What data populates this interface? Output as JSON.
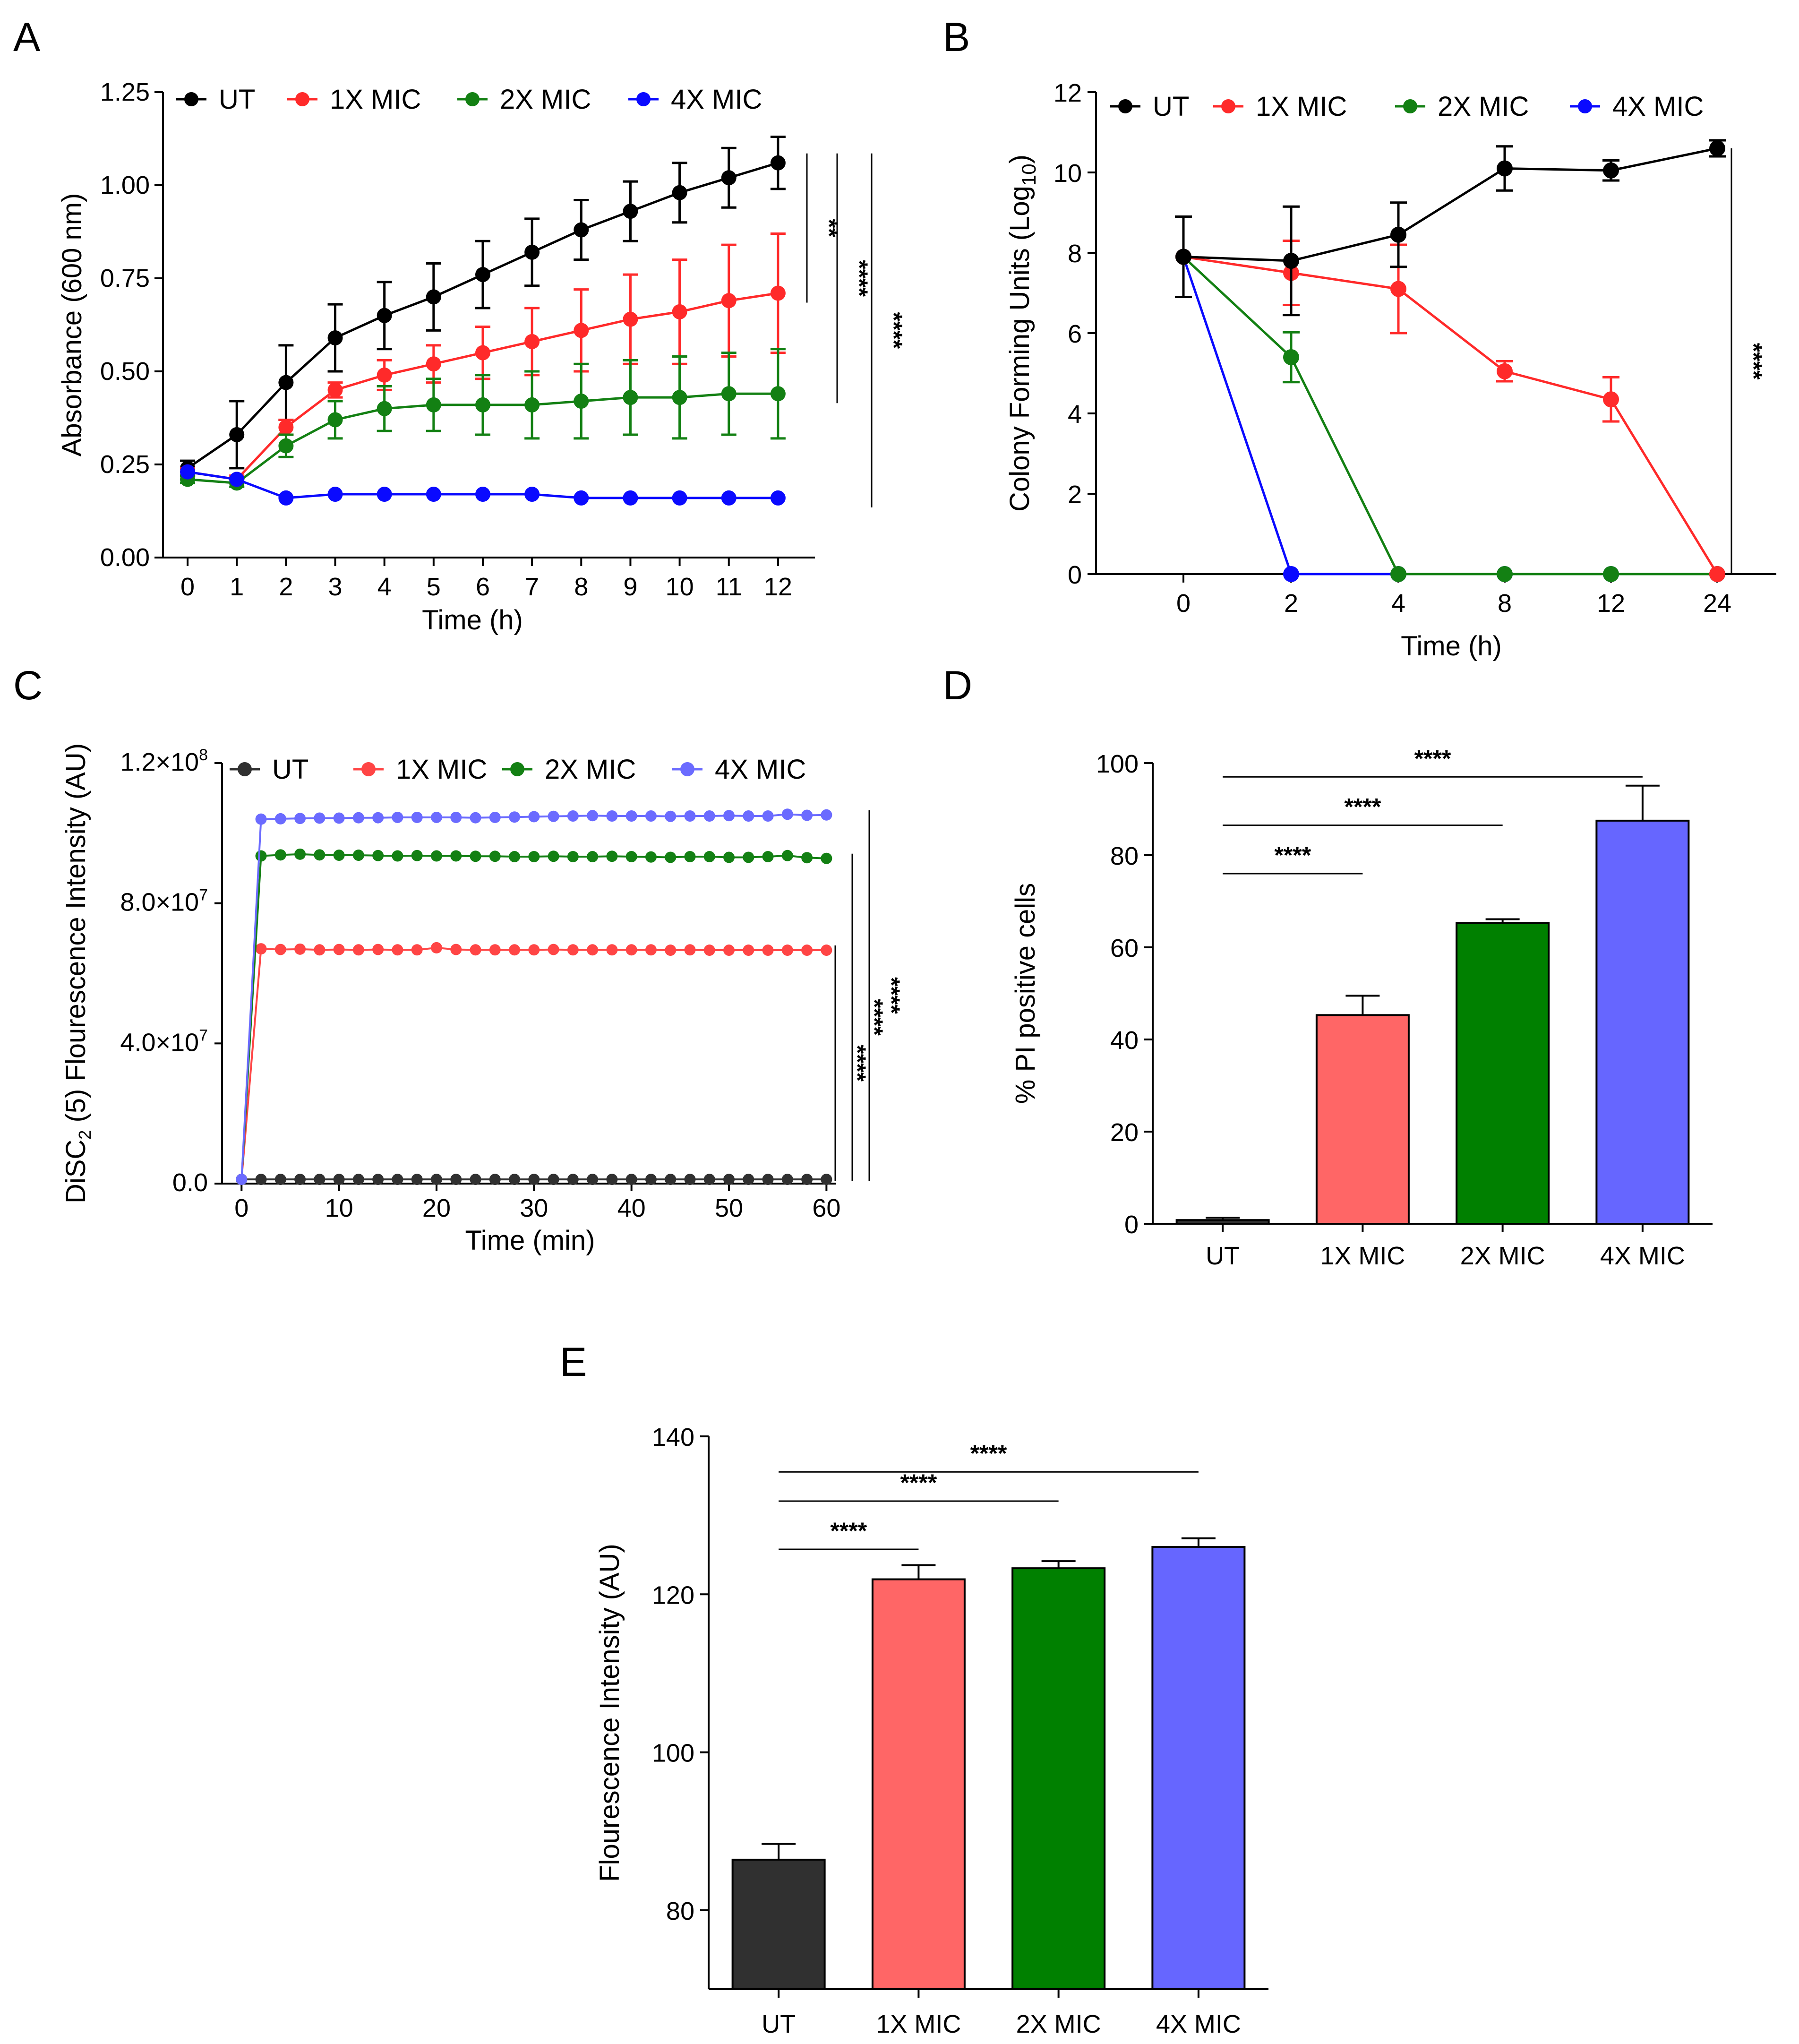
{
  "legend_series": [
    "UT",
    "1X MIC",
    "2X MIC",
    "4X MIC"
  ],
  "colors": {
    "A": [
      "#000000",
      "#ff2a2a",
      "#138013",
      "#0a0aff"
    ],
    "C": [
      "#303030",
      "#ff4545",
      "#138013",
      "#6b6bff"
    ],
    "bars": [
      "#303030",
      "#ff6666",
      "#008000",
      "#6666ff"
    ]
  },
  "chart_data": [
    {
      "id": "A",
      "panel_label": "A",
      "type": "line",
      "title": "",
      "xlabel": "Time (h)",
      "ylabel": "Absorbance (600 nm)",
      "x": [
        0,
        1,
        2,
        3,
        4,
        5,
        6,
        7,
        8,
        9,
        10,
        11,
        12
      ],
      "x_ticks": [
        "0",
        "1",
        "2",
        "3",
        "4",
        "5",
        "6",
        "7",
        "8",
        "9",
        "10",
        "11",
        "12"
      ],
      "ylim": [
        0,
        1.25
      ],
      "y_ticks": [
        "0.00",
        "0.25",
        "0.50",
        "0.75",
        "1.00",
        "1.25"
      ],
      "series": [
        {
          "name": "UT",
          "values": [
            0.24,
            0.33,
            0.47,
            0.59,
            0.65,
            0.7,
            0.76,
            0.82,
            0.88,
            0.93,
            0.98,
            1.02,
            1.06
          ],
          "errors": [
            0.02,
            0.09,
            0.1,
            0.09,
            0.09,
            0.09,
            0.09,
            0.09,
            0.08,
            0.08,
            0.08,
            0.08,
            0.07
          ]
        },
        {
          "name": "1X MIC",
          "values": [
            0.23,
            0.21,
            0.35,
            0.45,
            0.49,
            0.52,
            0.55,
            0.58,
            0.61,
            0.64,
            0.66,
            0.69,
            0.71
          ],
          "errors": [
            0.01,
            0.01,
            0.02,
            0.02,
            0.04,
            0.05,
            0.07,
            0.09,
            0.11,
            0.12,
            0.14,
            0.15,
            0.16
          ]
        },
        {
          "name": "2X MIC",
          "values": [
            0.21,
            0.2,
            0.3,
            0.37,
            0.4,
            0.41,
            0.41,
            0.41,
            0.42,
            0.43,
            0.43,
            0.44,
            0.44
          ],
          "errors": [
            0.01,
            0.01,
            0.03,
            0.05,
            0.06,
            0.07,
            0.08,
            0.09,
            0.1,
            0.1,
            0.11,
            0.11,
            0.12
          ]
        },
        {
          "name": "4X MIC",
          "values": [
            0.23,
            0.21,
            0.16,
            0.17,
            0.17,
            0.17,
            0.17,
            0.17,
            0.16,
            0.16,
            0.16,
            0.16,
            0.16
          ],
          "errors": [
            0,
            0,
            0,
            0,
            0,
            0,
            0,
            0,
            0,
            0,
            0,
            0,
            0
          ]
        }
      ],
      "annotations": [
        {
          "label": "**",
          "y_range": [
            0.71,
            1.06
          ]
        },
        {
          "label": "****",
          "y_range": [
            0.44,
            1.06
          ]
        },
        {
          "label": "****",
          "y_range": [
            0.16,
            1.06
          ]
        }
      ],
      "legend": "top"
    },
    {
      "id": "B",
      "panel_label": "B",
      "type": "line",
      "title": "",
      "xlabel": "Time (h)",
      "ylabel": "Colony Forming Units (Log",
      "ylabel_sub": "10",
      "ylabel_end": ")",
      "x": [
        "0",
        "2",
        "4",
        "8",
        "12",
        "24"
      ],
      "ylim": [
        0,
        12
      ],
      "y_ticks": [
        "0",
        "2",
        "4",
        "6",
        "8",
        "10",
        "12"
      ],
      "series": [
        {
          "name": "UT",
          "values": [
            7.9,
            7.8,
            8.45,
            10.1,
            10.05,
            10.6
          ],
          "errors": [
            1.0,
            1.35,
            0.8,
            0.55,
            0.25,
            0.2
          ]
        },
        {
          "name": "1X MIC",
          "values": [
            7.9,
            7.5,
            7.1,
            5.05,
            4.35,
            0
          ],
          "errors": [
            1.0,
            0.8,
            1.1,
            0.25,
            0.55,
            0
          ]
        },
        {
          "name": "2X MIC",
          "values": [
            7.9,
            5.4,
            0,
            0,
            0,
            0
          ],
          "errors": [
            1.0,
            0.62,
            0,
            0,
            0,
            0
          ]
        },
        {
          "name": "4X MIC",
          "values": [
            7.9,
            0,
            0,
            0,
            0,
            0
          ],
          "errors": [
            1.0,
            0,
            0,
            0,
            0,
            0
          ]
        }
      ],
      "annotations": [
        {
          "label": "****",
          "y_range": [
            0,
            10.6
          ]
        }
      ],
      "legend": "top"
    },
    {
      "id": "C",
      "panel_label": "C",
      "type": "line",
      "title": "",
      "xlabel": "Time (min)",
      "ylabel_pre": "DiSC",
      "ylabel_sub": "2",
      "ylabel_post": " (5) Flourescence Intensity (AU)",
      "xlim": [
        -2,
        61
      ],
      "x_ticks": [
        "0",
        "10",
        "20",
        "30",
        "40",
        "50",
        "60"
      ],
      "ylim": [
        0,
        120000000
      ],
      "y_ticks": [
        "0.0",
        "4.0×10",
        "8.0×10",
        "1.2×10"
      ],
      "y_tick_exp": [
        "",
        "7",
        "7",
        "8"
      ],
      "sample_times": [
        0,
        2,
        4,
        6,
        8,
        10,
        12,
        14,
        16,
        18,
        20,
        22,
        24,
        26,
        28,
        30,
        32,
        34,
        36,
        38,
        40,
        42,
        44,
        46,
        48,
        50,
        52,
        54,
        56,
        58,
        60
      ],
      "series": [
        {
          "name": "UT",
          "values": [
            1200000,
            1200000,
            1200000,
            1200000,
            1200000,
            1200000,
            1200000,
            1200000,
            1200000,
            1200000,
            1200000,
            1200000,
            1200000,
            1200000,
            1200000,
            1200000,
            1200000,
            1200000,
            1200000,
            1200000,
            1200000,
            1200000,
            1200000,
            1200000,
            1200000,
            1200000,
            1200000,
            1200000,
            1200000,
            1200000,
            1200000
          ]
        },
        {
          "name": "1X MIC",
          "values": [
            1200000,
            67000000,
            66800000,
            66900000,
            66700000,
            66800000,
            66700000,
            66800000,
            66700000,
            66700000,
            67300000,
            66800000,
            66700000,
            66700000,
            66700000,
            66700000,
            66800000,
            66700000,
            66700000,
            66700000,
            66700000,
            66700000,
            66600000,
            66700000,
            66600000,
            66600000,
            66600000,
            66600000,
            66600000,
            66600000,
            66600000
          ]
        },
        {
          "name": "2X MIC",
          "values": [
            1200000,
            93500000,
            93800000,
            94000000,
            93800000,
            93700000,
            93700000,
            93600000,
            93500000,
            93600000,
            93500000,
            93500000,
            93400000,
            93400000,
            93300000,
            93300000,
            93400000,
            93300000,
            93300000,
            93400000,
            93300000,
            93200000,
            93100000,
            93300000,
            93300000,
            93100000,
            93100000,
            93300000,
            93600000,
            93000000,
            92800000
          ]
        },
        {
          "name": "4X MIC",
          "values": [
            1200000,
            104000000,
            104100000,
            104200000,
            104300000,
            104300000,
            104400000,
            104400000,
            104500000,
            104500000,
            104500000,
            104500000,
            104400000,
            104500000,
            104600000,
            104700000,
            104800000,
            104900000,
            105000000,
            104900000,
            104900000,
            104900000,
            104800000,
            104900000,
            104900000,
            105000000,
            104900000,
            104900000,
            105400000,
            105100000,
            105200000
          ]
        }
      ],
      "annotations": [
        {
          "label": "****",
          "y_range": [
            1200000,
            66600000
          ]
        },
        {
          "label": "****",
          "y_range": [
            1200000,
            92800000
          ]
        },
        {
          "label": "****",
          "y_range": [
            1200000,
            105200000
          ]
        }
      ],
      "legend": "top"
    },
    {
      "id": "D",
      "panel_label": "D",
      "type": "bar",
      "title": "",
      "xlabel": "",
      "ylabel": "% PI positive cells",
      "categories": [
        "UT",
        "1X MIC",
        "2X MIC",
        "4X MIC"
      ],
      "values": [
        0.8,
        45.3,
        65.3,
        87.5
      ],
      "errors": [
        0.5,
        4.2,
        0.8,
        7.6
      ],
      "ylim": [
        0,
        100
      ],
      "y_ticks": [
        "0",
        "20",
        "40",
        "60",
        "80",
        "100"
      ],
      "annotations": [
        {
          "label": "****",
          "from": "UT",
          "to": "1X MIC",
          "y": 76
        },
        {
          "label": "****",
          "from": "UT",
          "to": "2X MIC",
          "y": 86.5
        },
        {
          "label": "****",
          "from": "UT",
          "to": "4X MIC",
          "y": 97
        }
      ]
    },
    {
      "id": "E",
      "panel_label": "E",
      "type": "bar",
      "title": "",
      "xlabel": "",
      "ylabel": "Flourescence Intensity (AU)",
      "categories": [
        "UT",
        "1X MIC",
        "2X MIC",
        "4X MIC"
      ],
      "values": [
        86.4,
        121.9,
        123.3,
        126.0
      ],
      "errors": [
        2.0,
        1.8,
        0.9,
        1.1
      ],
      "ylim": [
        70,
        140
      ],
      "y_ticks": [
        "80",
        "100",
        "120",
        "140"
      ],
      "annotations": [
        {
          "label": "****",
          "from": "UT",
          "to": "1X MIC",
          "y": 125.7
        },
        {
          "label": "****",
          "from": "UT",
          "to": "2X MIC",
          "y": 131.8
        },
        {
          "label": "****",
          "from": "UT",
          "to": "4X MIC",
          "y": 135.5
        }
      ]
    }
  ]
}
